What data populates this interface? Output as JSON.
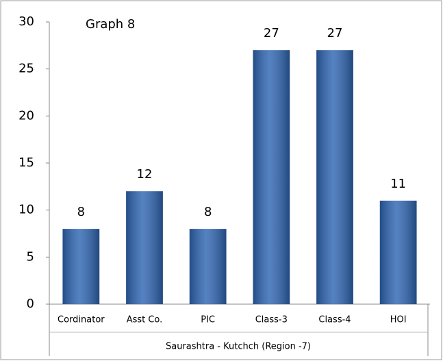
{
  "chart_data": {
    "type": "bar",
    "title": "Graph 8",
    "categories": [
      "Cordinator",
      "Asst Co.",
      "PIC",
      "Class-3",
      "Class-4",
      "HOI"
    ],
    "values": [
      8,
      12,
      8,
      27,
      27,
      11
    ],
    "color": "#2f66b3",
    "x_label": "Saurashtra - Kutchch (Region -7)",
    "ylim": [
      0,
      30
    ],
    "yticks": [
      0,
      5,
      10,
      15,
      20,
      25,
      30
    ],
    "grid": false
  }
}
